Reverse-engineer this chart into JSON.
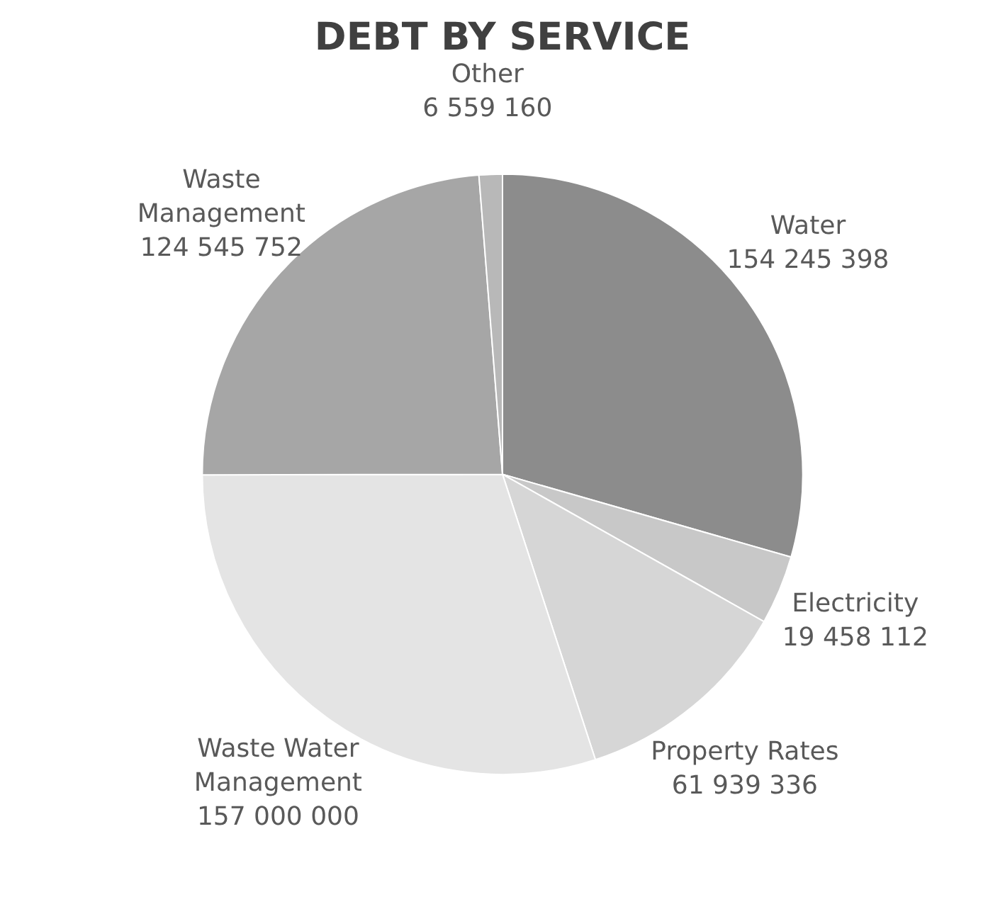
{
  "chart_data": {
    "type": "pie",
    "title": "DEBT BY SERVICE",
    "categories": [
      "Water",
      "Electricity",
      "Property Rates",
      "Waste Water Management",
      "Waste Management",
      "Other"
    ],
    "values": [
      154245398,
      19458112,
      61939336,
      157000000,
      124545752,
      6559160
    ],
    "colors": [
      "#8c8c8c",
      "#c8c8c8",
      "#d6d6d6",
      "#e4e4e4",
      "#a6a6a6",
      "#b8b8b8"
    ],
    "data_labels": true,
    "legend": false
  }
}
